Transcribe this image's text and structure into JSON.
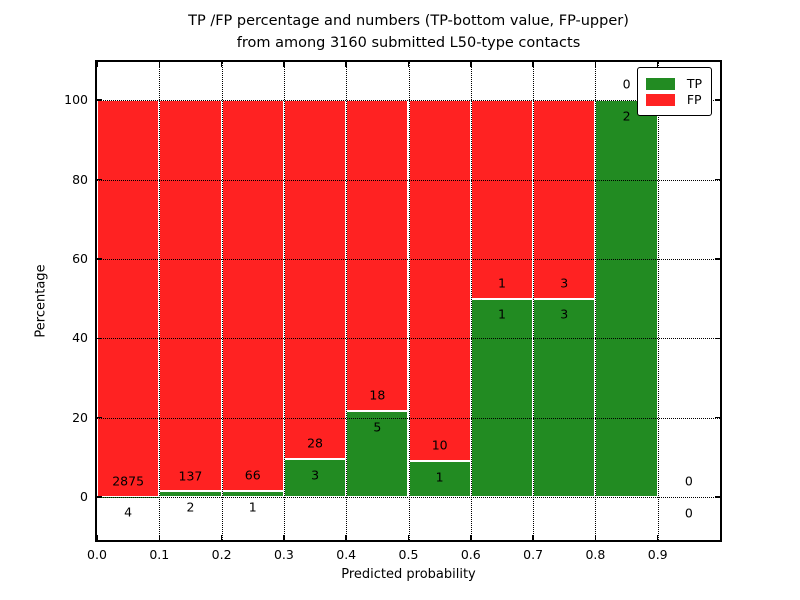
{
  "figure": {
    "title_line1": "TP /FP percentage and numbers (TP-bottom value, FP-upper)",
    "title_line2": "from among 3160 submitted L50-type contacts"
  },
  "chart_data": {
    "type": "bar",
    "subtype": "stacked-percentage-histogram",
    "title": "TP /FP percentage and numbers (TP-bottom value, FP-upper)\nfrom among 3160 submitted L50-type contacts",
    "total_contacts": 3160,
    "xlabel": "Predicted probability",
    "ylabel": "Percentage",
    "xlim": [
      0.0,
      1.0
    ],
    "ylim": [
      -10.8,
      109.6
    ],
    "xticks": [
      0.0,
      0.1,
      0.2,
      0.3,
      0.4,
      0.5,
      0.6,
      0.7,
      0.8,
      0.9
    ],
    "xtick_labels": [
      "0.0",
      "0.1",
      "0.2",
      "0.3",
      "0.4",
      "0.5",
      "0.6",
      "0.7",
      "0.8",
      "0.9"
    ],
    "yticks": [
      0,
      20,
      40,
      60,
      80,
      100
    ],
    "ytick_labels": [
      "0",
      "20",
      "40",
      "60",
      "80",
      "100"
    ],
    "grid": {
      "visible": true,
      "style": "dotted",
      "color": "#000000",
      "on_top_of_bars": true
    },
    "bar_edge_color": "#ffffff",
    "colors": {
      "tp": "#228b22",
      "fp": "#ff2222"
    },
    "legend": {
      "position": "upper-right",
      "entries": [
        {
          "label": "TP",
          "color": "#228b22"
        },
        {
          "label": "FP",
          "color": "#ff2222"
        }
      ]
    },
    "label_offset_percent": 4,
    "bins": [
      {
        "range": [
          0.0,
          0.1
        ],
        "tp": 4,
        "fp": 2875,
        "tp_percent": 0.14
      },
      {
        "range": [
          0.1,
          0.2
        ],
        "tp": 2,
        "fp": 137,
        "tp_percent": 1.44
      },
      {
        "range": [
          0.2,
          0.3
        ],
        "tp": 1,
        "fp": 66,
        "tp_percent": 1.49
      },
      {
        "range": [
          0.3,
          0.4
        ],
        "tp": 3,
        "fp": 28,
        "tp_percent": 9.68
      },
      {
        "range": [
          0.4,
          0.5
        ],
        "tp": 5,
        "fp": 18,
        "tp_percent": 21.74
      },
      {
        "range": [
          0.5,
          0.6
        ],
        "tp": 1,
        "fp": 10,
        "tp_percent": 9.09
      },
      {
        "range": [
          0.6,
          0.7
        ],
        "tp": 1,
        "fp": 1,
        "tp_percent": 50.0
      },
      {
        "range": [
          0.7,
          0.8
        ],
        "tp": 3,
        "fp": 3,
        "tp_percent": 50.0
      },
      {
        "range": [
          0.8,
          0.9
        ],
        "tp": 2,
        "fp": 0,
        "tp_percent": 100.0
      },
      {
        "range": [
          0.9,
          1.0
        ],
        "tp": 0,
        "fp": 0,
        "tp_percent": null
      }
    ]
  }
}
